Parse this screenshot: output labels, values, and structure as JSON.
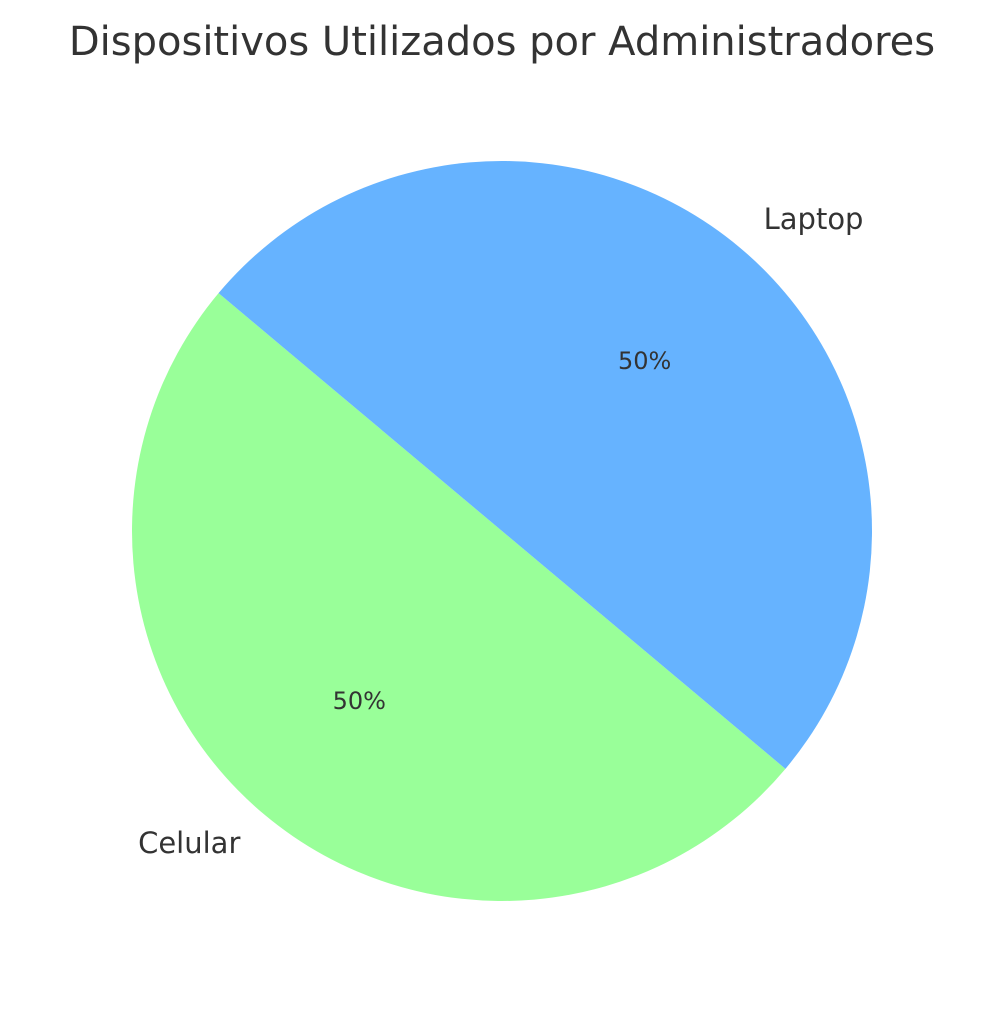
{
  "chart_data": {
    "type": "pie",
    "title": "Dispositivos Utilizados por Administradores",
    "categories": [
      "Celular",
      "Laptop"
    ],
    "values": [
      50,
      50
    ],
    "percent_labels": [
      "50%",
      "50%"
    ],
    "colors": [
      "#99ff99",
      "#66b3ff"
    ],
    "start_angle_deg": 140,
    "direction": "counterclockwise",
    "legend": "none"
  }
}
